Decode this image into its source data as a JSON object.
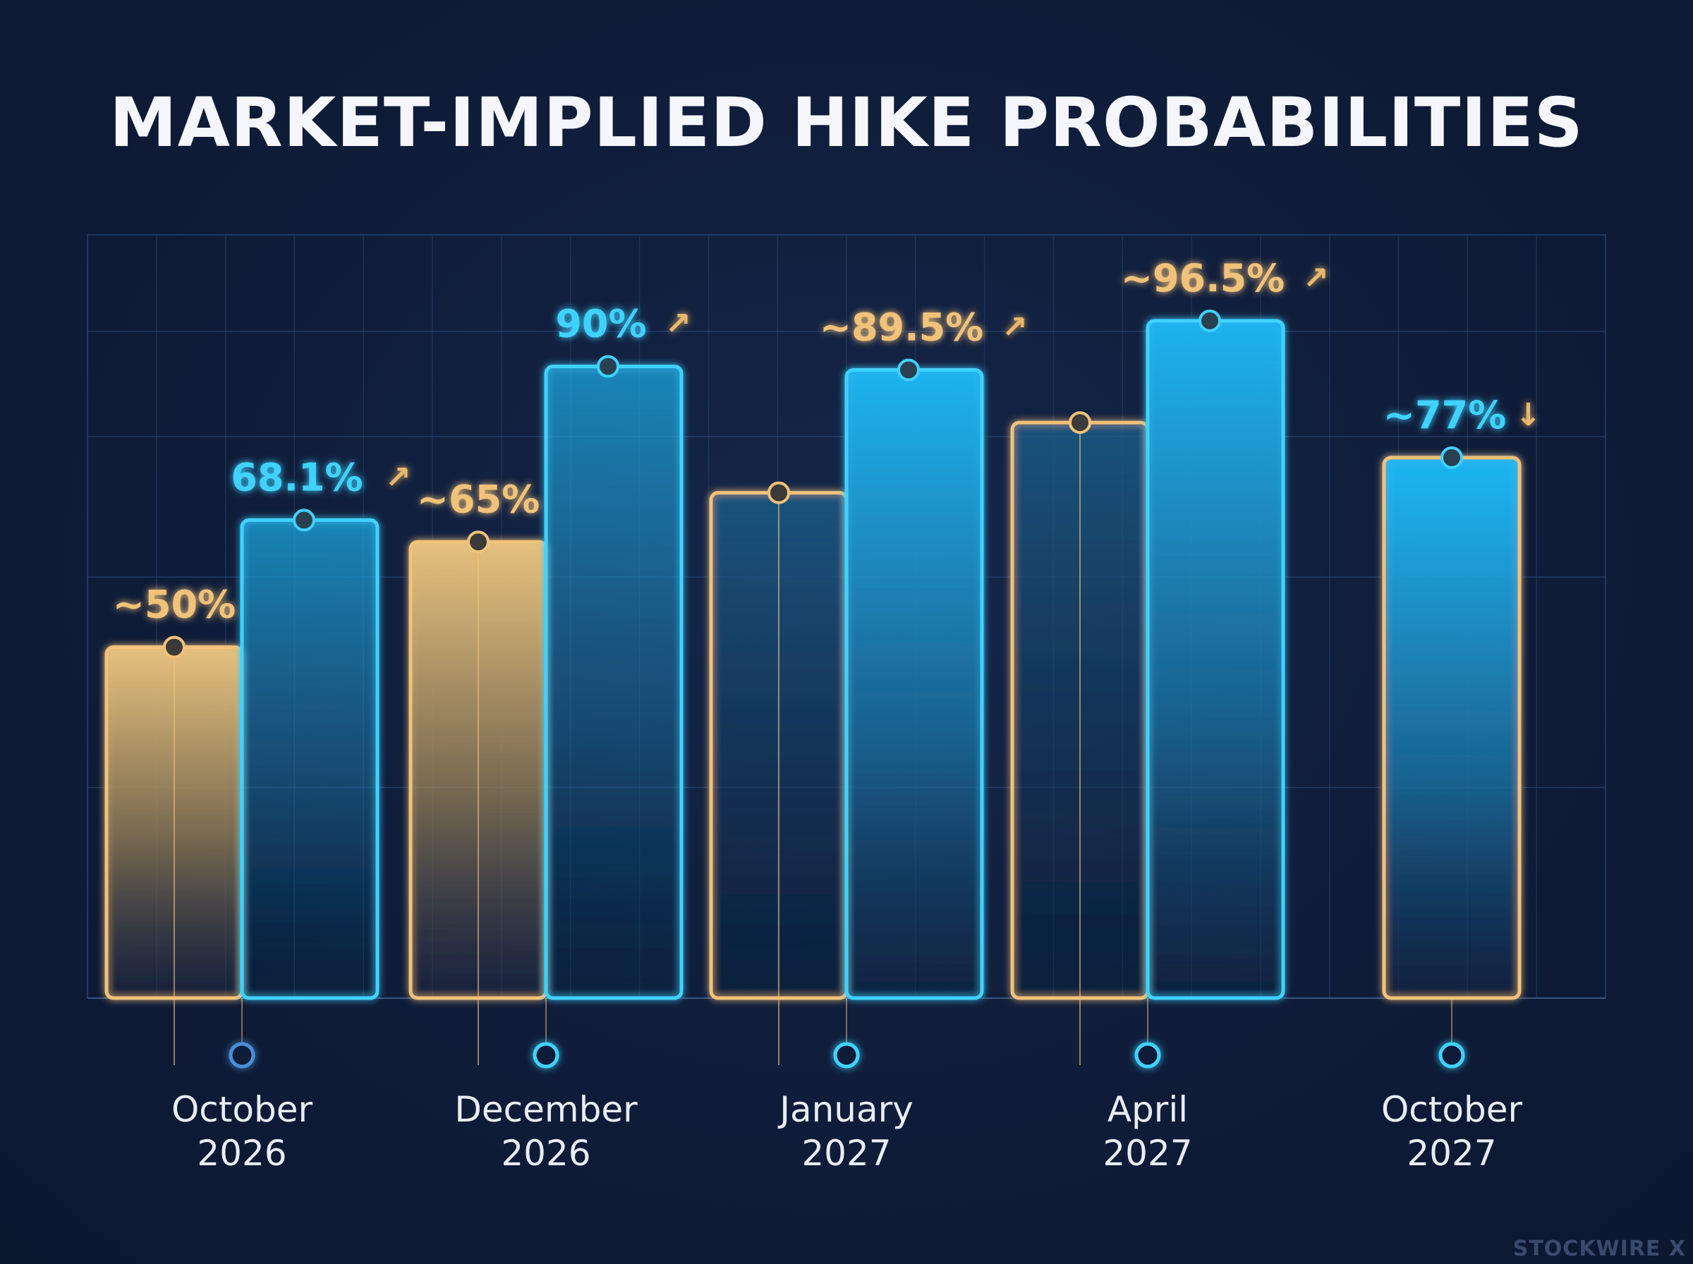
{
  "chart_data": {
    "type": "bar",
    "title": "MARKET-IMPLIED HIKE PROBABILITIES",
    "categories": [
      "October\n2026",
      "December\n2026",
      "January\n2027",
      "April\n2027",
      "October\n2027"
    ],
    "category_lines": [
      [
        "October",
        "2026"
      ],
      [
        "December",
        "2026"
      ],
      [
        "January",
        "2027"
      ],
      [
        "April",
        "2027"
      ],
      [
        "October",
        "2027"
      ]
    ],
    "ylim": [
      0,
      100
    ],
    "grid": true,
    "groups": [
      {
        "gold": {
          "value": 50,
          "label": "~50%"
        },
        "blue": {
          "value": 68.1,
          "label": "68.1%",
          "arrow": "↗"
        }
      },
      {
        "gold": {
          "value": 65,
          "label": "~65%"
        },
        "blue": {
          "value": 90,
          "label": "90%",
          "arrow": "↗"
        }
      },
      {
        "gold": {
          "value": 72,
          "label": ""
        },
        "blue": {
          "value": 89.5,
          "label": "~89.5%",
          "arrow": "↗"
        }
      },
      {
        "gold": {
          "value": 82,
          "label": ""
        },
        "blue": {
          "value": 96.5,
          "label": "~96.5%",
          "arrow": "↗"
        }
      },
      {
        "gold": null,
        "blue": {
          "value": 77,
          "label": "~77%",
          "arrow": "↓"
        }
      }
    ],
    "colors": {
      "gold": "#f1c27a",
      "blue": "#3fd2ff",
      "arrow": "#e9b86c"
    }
  },
  "watermark": "STOCKWIRE X"
}
